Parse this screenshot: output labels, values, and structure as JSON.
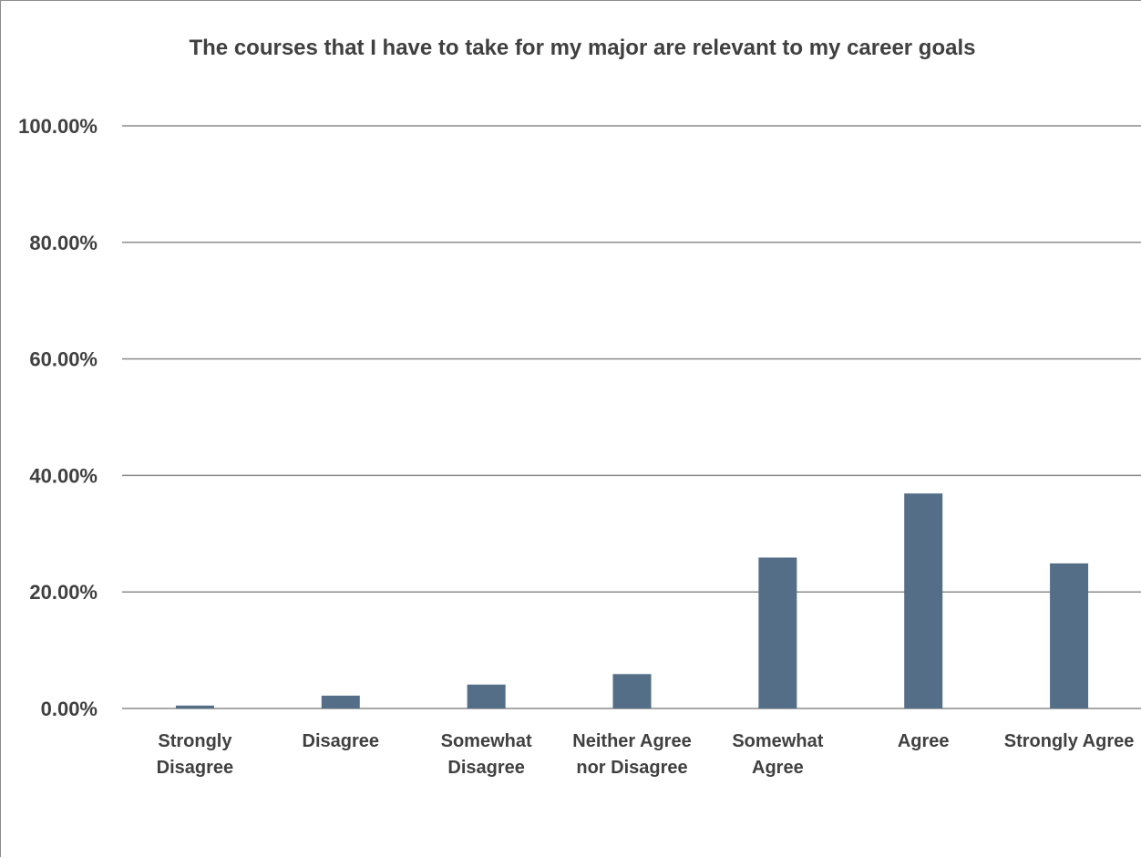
{
  "chart_data": {
    "type": "bar",
    "title": "The courses that I have to take for my major are relevant to my career goals",
    "categories": [
      [
        "Strongly",
        "Disagree"
      ],
      [
        "Disagree"
      ],
      [
        "Somewhat",
        "Disagree"
      ],
      [
        "Neither Agree",
        "nor Disagree"
      ],
      [
        "Somewhat",
        "Agree"
      ],
      [
        "Agree"
      ],
      [
        "Strongly Agree"
      ]
    ],
    "values": [
      0.5,
      2.2,
      4.1,
      5.9,
      25.9,
      36.9,
      24.9
    ],
    "ylim": [
      0,
      100
    ],
    "yticks": [
      0,
      20,
      40,
      60,
      80,
      100
    ],
    "ytick_labels": [
      "0.00%",
      "20.00%",
      "40.00%",
      "60.00%",
      "80.00%",
      "100.00%"
    ],
    "xlabel": "",
    "ylabel": "",
    "grid": true,
    "legend": "none",
    "colors": {
      "bar": "#546e88",
      "gridline": "#8c8c8c",
      "text": "#404040"
    }
  }
}
